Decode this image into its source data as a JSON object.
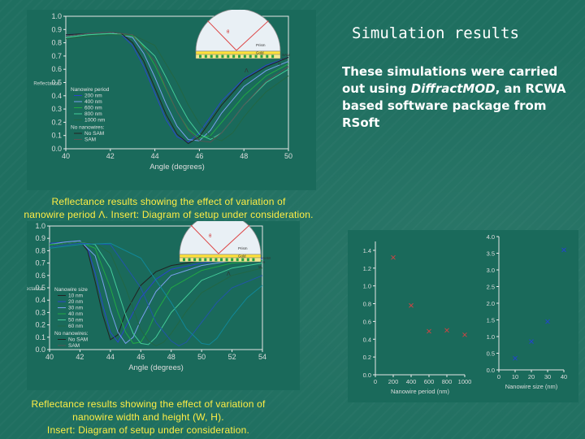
{
  "slide": {
    "title": "Simulation results",
    "body_pre": "These simulations were carried out using ",
    "body_software": "DiffractMOD",
    "body_post": ", an RCWA based software package from RSoft"
  },
  "captions": {
    "top": [
      "Reflectance results showing the effect of variation of",
      "nanowire period Λ. Insert: Diagram of setup under consideration."
    ],
    "bottom": [
      "Reflectance results showing the effect of variation of",
      "nanowire width and height (W, H).",
      "Insert: Diagram of setup under consideration."
    ]
  },
  "chart_data": [
    {
      "type": "line",
      "id": "period-reflectance",
      "xlabel": "Angle (degrees)",
      "ylabel": "Reflectance",
      "xlim": [
        40,
        50
      ],
      "ylim": [
        0,
        1.0
      ],
      "x_ticks": [
        40,
        42,
        44,
        46,
        48,
        50
      ],
      "y_ticks": [
        0.0,
        0.1,
        0.2,
        0.3,
        0.4,
        0.5,
        0.6,
        0.7,
        0.8,
        0.9,
        1.0
      ],
      "legend": {
        "heading": "Nanowire period",
        "items": [
          "200 nm",
          "400 nm",
          "600 nm",
          "800 nm",
          "1000 nm"
        ],
        "heading2": "No nanowires:",
        "items2": [
          "No SAM",
          "SAM"
        ]
      },
      "series": [
        {
          "color": "#2a44cc",
          "x": [
            40,
            41,
            42,
            42.5,
            43,
            43.5,
            44,
            44.5,
            45,
            45.5,
            46,
            46.5,
            47,
            48,
            49,
            50
          ],
          "y": [
            0.86,
            0.87,
            0.88,
            0.86,
            0.78,
            0.62,
            0.42,
            0.22,
            0.09,
            0.05,
            0.12,
            0.24,
            0.36,
            0.53,
            0.63,
            0.69
          ]
        },
        {
          "color": "#7aa0ee",
          "x": [
            40,
            41,
            42,
            43,
            43.5,
            44,
            44.5,
            45,
            45.5,
            46,
            46.5,
            47,
            48,
            49,
            50
          ],
          "y": [
            0.85,
            0.87,
            0.88,
            0.84,
            0.72,
            0.54,
            0.34,
            0.17,
            0.07,
            0.06,
            0.14,
            0.27,
            0.47,
            0.59,
            0.66
          ]
        },
        {
          "color": "#22aa44",
          "x": [
            40,
            41,
            42,
            43,
            43.5,
            44,
            44.5,
            45,
            45.5,
            46,
            46.5,
            47,
            48,
            49,
            50
          ],
          "y": [
            0.84,
            0.86,
            0.87,
            0.85,
            0.77,
            0.63,
            0.45,
            0.28,
            0.15,
            0.08,
            0.1,
            0.2,
            0.4,
            0.55,
            0.64
          ]
        },
        {
          "color": "#44cc99",
          "x": [
            40,
            41,
            42,
            43,
            44,
            44.5,
            45,
            45.5,
            46,
            46.5,
            47,
            47.5,
            48,
            49,
            50
          ],
          "y": [
            0.84,
            0.86,
            0.87,
            0.86,
            0.7,
            0.54,
            0.37,
            0.22,
            0.11,
            0.07,
            0.12,
            0.22,
            0.33,
            0.5,
            0.6
          ]
        },
        {
          "color": "#226644",
          "x": [
            40,
            41,
            42,
            43,
            44,
            45,
            45.5,
            46,
            46.5,
            47,
            47.5,
            48,
            48.5,
            49,
            50
          ],
          "y": [
            0.83,
            0.85,
            0.86,
            0.86,
            0.78,
            0.5,
            0.33,
            0.19,
            0.09,
            0.06,
            0.12,
            0.24,
            0.34,
            0.43,
            0.55
          ]
        },
        {
          "color": "#222222",
          "x": [
            40,
            41,
            42,
            42.5,
            43,
            43.5,
            44,
            44.5,
            45,
            45.5,
            46,
            46.5,
            47,
            48,
            49,
            50
          ],
          "y": [
            0.86,
            0.87,
            0.88,
            0.87,
            0.8,
            0.66,
            0.46,
            0.26,
            0.11,
            0.04,
            0.09,
            0.21,
            0.33,
            0.52,
            0.62,
            0.69
          ]
        },
        {
          "color": "#555555",
          "x": [
            40,
            41,
            42,
            43,
            44,
            44.5,
            45,
            45.5,
            46,
            46.5,
            47,
            47.5,
            48,
            49,
            50
          ],
          "y": [
            0.85,
            0.87,
            0.88,
            0.86,
            0.66,
            0.46,
            0.28,
            0.14,
            0.06,
            0.05,
            0.12,
            0.22,
            0.33,
            0.51,
            0.62
          ]
        }
      ]
    },
    {
      "type": "line",
      "id": "size-reflectance",
      "xlabel": "Angle (degrees)",
      "ylabel": "Reflectance",
      "xlim": [
        40,
        54
      ],
      "ylim": [
        0,
        1.0
      ],
      "x_ticks": [
        40,
        42,
        44,
        46,
        48,
        50,
        52,
        54
      ],
      "x_tick_labels": [
        "40",
        "42",
        "44",
        "46",
        "48",
        "50",
        "52",
        "54"
      ],
      "y_ticks": [
        0.0,
        0.1,
        0.2,
        0.3,
        0.4,
        0.5,
        0.6,
        0.7,
        0.8,
        0.9,
        1.0
      ],
      "legend": {
        "heading": "Nanowire size",
        "items": [
          "10 nm",
          "20 nm",
          "30 nm",
          "40 nm",
          "50 nm",
          "60 nm"
        ],
        "heading2": "No nanowires:",
        "items2": [
          "No SAM",
          "SAM"
        ]
      },
      "series": [
        {
          "color": "#222222",
          "x": [
            40,
            41,
            42,
            42.5,
            43,
            43.5,
            44,
            44.5,
            45,
            46,
            47,
            48,
            50,
            52,
            54
          ],
          "y": [
            0.86,
            0.87,
            0.88,
            0.8,
            0.55,
            0.28,
            0.08,
            0.12,
            0.3,
            0.52,
            0.63,
            0.68,
            0.72,
            0.74,
            0.74
          ]
        },
        {
          "color": "#2a44cc",
          "x": [
            40,
            41,
            42,
            42.5,
            43,
            43.5,
            44,
            44.5,
            45,
            46,
            47,
            48,
            50,
            52,
            54
          ],
          "y": [
            0.86,
            0.87,
            0.88,
            0.82,
            0.62,
            0.36,
            0.14,
            0.06,
            0.18,
            0.42,
            0.57,
            0.65,
            0.7,
            0.73,
            0.74
          ]
        },
        {
          "color": "#7aa0ee",
          "x": [
            40,
            41,
            42,
            43,
            43.5,
            44,
            44.5,
            45,
            45.5,
            46,
            47,
            48,
            50,
            52,
            54
          ],
          "y": [
            0.85,
            0.87,
            0.88,
            0.76,
            0.55,
            0.32,
            0.14,
            0.05,
            0.1,
            0.24,
            0.47,
            0.6,
            0.68,
            0.72,
            0.73
          ]
        },
        {
          "color": "#22aa44",
          "x": [
            40,
            41,
            42,
            43,
            44,
            44.5,
            45,
            45.5,
            46,
            46.5,
            47,
            48,
            50,
            52,
            54
          ],
          "y": [
            0.85,
            0.86,
            0.87,
            0.82,
            0.5,
            0.3,
            0.14,
            0.05,
            0.06,
            0.16,
            0.3,
            0.5,
            0.64,
            0.7,
            0.72
          ]
        },
        {
          "color": "#44cc99",
          "x": [
            40,
            41,
            42,
            43,
            44,
            45,
            45.5,
            46,
            46.5,
            47,
            47.5,
            48,
            50,
            52,
            54
          ],
          "y": [
            0.84,
            0.86,
            0.87,
            0.85,
            0.66,
            0.28,
            0.13,
            0.05,
            0.04,
            0.1,
            0.2,
            0.3,
            0.56,
            0.66,
            0.7
          ]
        },
        {
          "color": "#226644",
          "x": [
            40,
            41,
            42,
            43,
            44,
            45,
            46,
            46.5,
            47,
            47.5,
            48,
            48.5,
            49,
            50,
            52,
            54
          ],
          "y": [
            0.84,
            0.86,
            0.87,
            0.86,
            0.78,
            0.5,
            0.16,
            0.07,
            0.03,
            0.06,
            0.13,
            0.22,
            0.31,
            0.46,
            0.6,
            0.66
          ]
        },
        {
          "color": "#2255aa",
          "x": [
            40,
            42,
            44,
            46,
            47,
            48,
            48.5,
            49,
            49.5,
            50,
            51,
            52,
            54
          ],
          "y": [
            0.83,
            0.86,
            0.85,
            0.5,
            0.22,
            0.07,
            0.03,
            0.06,
            0.14,
            0.22,
            0.38,
            0.5,
            0.6
          ]
        },
        {
          "color": "#118899",
          "x": [
            40,
            42,
            44,
            46,
            48,
            49,
            50,
            50.5,
            51,
            51.5,
            52,
            53,
            54
          ],
          "y": [
            0.82,
            0.85,
            0.86,
            0.74,
            0.38,
            0.17,
            0.05,
            0.04,
            0.09,
            0.18,
            0.27,
            0.42,
            0.52
          ]
        }
      ]
    },
    {
      "type": "scatter",
      "id": "min-angle-vs-params",
      "panels": [
        {
          "xlabel": "Nanowire period (nm)",
          "xlim": [
            0,
            1000
          ],
          "x_ticks": [
            0,
            200,
            400,
            600,
            800,
            1000
          ],
          "ylim": [
            0,
            1.5
          ],
          "y_ticks": [
            0.0,
            0.2,
            0.4,
            0.6,
            0.8,
            1.0,
            1.2,
            1.4
          ],
          "marker_color": "#cc4444",
          "x": [
            200,
            400,
            600,
            800,
            1000
          ],
          "y": [
            1.32,
            0.78,
            0.49,
            0.5,
            0.45
          ]
        },
        {
          "xlabel": "Nanowire size (nm)",
          "xlim": [
            0,
            40
          ],
          "x_ticks": [
            0,
            10,
            20,
            30,
            40
          ],
          "ylim": [
            0,
            4.0
          ],
          "y_ticks": [
            0.0,
            0.5,
            1.0,
            1.5,
            2.0,
            2.5,
            3.0,
            3.5,
            4.0
          ],
          "marker_color": "#2244cc",
          "x": [
            10,
            20,
            30,
            40
          ],
          "y": [
            0.35,
            0.85,
            1.45,
            3.6
          ]
        }
      ]
    }
  ],
  "inset": {
    "labels": [
      "θ",
      "Prism",
      "Gold",
      "SAM",
      "H",
      "W",
      "Λ"
    ]
  }
}
